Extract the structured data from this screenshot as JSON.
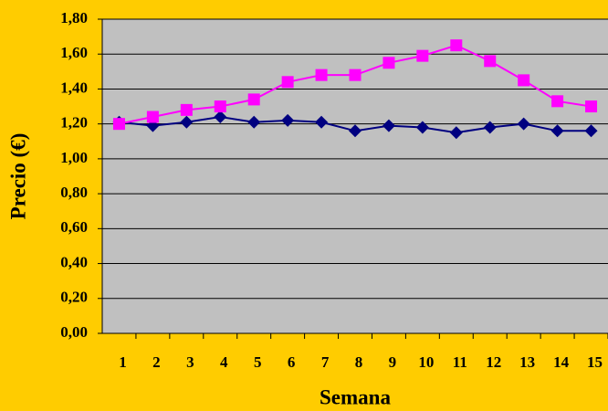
{
  "chart_data": {
    "type": "line",
    "x_label": "Semana",
    "y_label": "Precio (€)",
    "categories": [
      "1",
      "2",
      "3",
      "4",
      "5",
      "6",
      "7",
      "8",
      "9",
      "10",
      "11",
      "12",
      "13",
      "14",
      "15"
    ],
    "series": [
      {
        "color": "#000080",
        "marker": "diamond",
        "values": [
          1.21,
          1.19,
          1.21,
          1.24,
          1.21,
          1.22,
          1.21,
          1.16,
          1.19,
          1.18,
          1.15,
          1.18,
          1.2,
          1.16,
          1.16
        ]
      },
      {
        "color": "#ff00ff",
        "marker": "square",
        "values": [
          1.2,
          1.24,
          1.28,
          1.3,
          1.34,
          1.44,
          1.48,
          1.48,
          1.55,
          1.59,
          1.65,
          1.56,
          1.45,
          1.33,
          1.3
        ]
      }
    ],
    "ylim": [
      0,
      1.8
    ],
    "yticks": [
      {
        "value": 0,
        "label": "0,00"
      },
      {
        "value": 0.2,
        "label": "0,20"
      },
      {
        "value": 0.4,
        "label": "0,40"
      },
      {
        "value": 0.6,
        "label": "0,60"
      },
      {
        "value": 0.8,
        "label": "0,80"
      },
      {
        "value": 1.0,
        "label": "1,00"
      },
      {
        "value": 1.2,
        "label": "1,20"
      },
      {
        "value": 1.4,
        "label": "1,40"
      },
      {
        "value": 1.6,
        "label": "1,60"
      },
      {
        "value": 1.8,
        "label": "1,80"
      }
    ],
    "grid": true,
    "background": "#ffcc00",
    "plot_background": "#c0c0c0"
  }
}
